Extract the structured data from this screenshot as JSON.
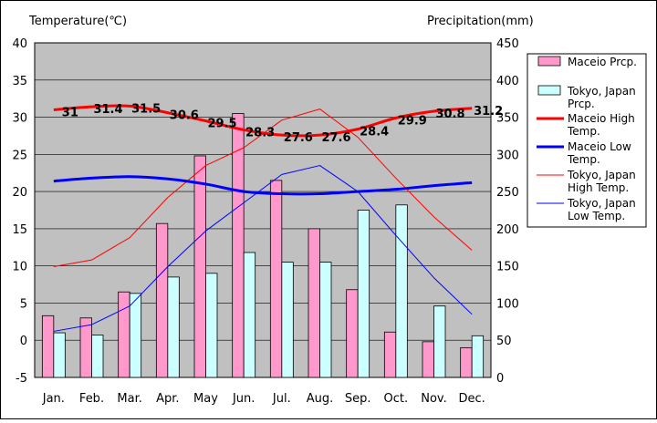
{
  "chart_data": {
    "type": "bar",
    "y_left_label": "Temperature(℃)",
    "y_right_label": "Precipitation(mm)",
    "categories": [
      "Jan.",
      "Feb.",
      "Mar.",
      "Apr.",
      "May",
      "Jun.",
      "Jul.",
      "Aug.",
      "Sep.",
      "Oct.",
      "Nov.",
      "Dec."
    ],
    "y_left_ticks": [
      40,
      35,
      30,
      25,
      20,
      15,
      10,
      5,
      0,
      -5
    ],
    "y_right_ticks": [
      450,
      400,
      350,
      300,
      250,
      200,
      150,
      100,
      50,
      0
    ],
    "ylim_left": [
      -5,
      40
    ],
    "ylim_right": [
      0,
      450
    ],
    "grid": true,
    "legend_position": "right",
    "bar_series": [
      {
        "name": "Maceio Prcp.",
        "color": "#ff99cc",
        "axis": "right",
        "values": [
          83,
          80,
          115,
          207,
          298,
          355,
          265,
          200,
          118,
          61,
          48,
          40
        ]
      },
      {
        "name": "Tokyo, Japan Prcp.",
        "color": "#ccffff",
        "axis": "right",
        "values": [
          60,
          57,
          113,
          135,
          140,
          168,
          155,
          155,
          225,
          232,
          96,
          56
        ]
      }
    ],
    "line_series": [
      {
        "name": "Maceio High Temp.",
        "color": "#ff0000",
        "width": 3,
        "axis": "left",
        "values": [
          31,
          31.4,
          31.5,
          30.6,
          29.5,
          28.3,
          27.6,
          27.6,
          28.4,
          29.9,
          30.8,
          31.2
        ],
        "labels": [
          "31",
          "31.4",
          "31.5",
          "30.6",
          "29.5",
          "28.3",
          "27.6",
          "27.6",
          "28.4",
          "29.9",
          "30.8",
          "31.2"
        ]
      },
      {
        "name": "Maceio Low Temp.",
        "color": "#0000ff",
        "width": 3,
        "axis": "left",
        "values": [
          21.4,
          21.8,
          22.0,
          21.7,
          21.0,
          20.0,
          19.7,
          19.7,
          20.0,
          20.3,
          20.8,
          21.2
        ]
      },
      {
        "name": "Tokyo, Japan High Temp.",
        "color": "#ff0000",
        "width": 1,
        "axis": "left",
        "values": [
          9.9,
          10.8,
          13.8,
          19.2,
          23.5,
          25.9,
          29.6,
          31.1,
          27.3,
          21.8,
          16.6,
          12.1
        ]
      },
      {
        "name": "Tokyo, Japan Low Temp.",
        "color": "#0000ff",
        "width": 1,
        "axis": "left",
        "values": [
          1.2,
          2.1,
          4.6,
          9.9,
          14.7,
          18.5,
          22.3,
          23.5,
          20.0,
          14.1,
          8.4,
          3.5
        ]
      }
    ],
    "legend_entries": [
      "Maceio Prcp.",
      "Tokyo, Japan Prcp.",
      "Maceio High Temp.",
      "Maceio Low Temp.",
      "Tokyo, Japan High Temp.",
      "Tokyo, Japan Low Temp."
    ]
  },
  "colors": {
    "plot_bg": "#c0c0c0",
    "grid": "#000000",
    "bar_border": "#000000"
  }
}
